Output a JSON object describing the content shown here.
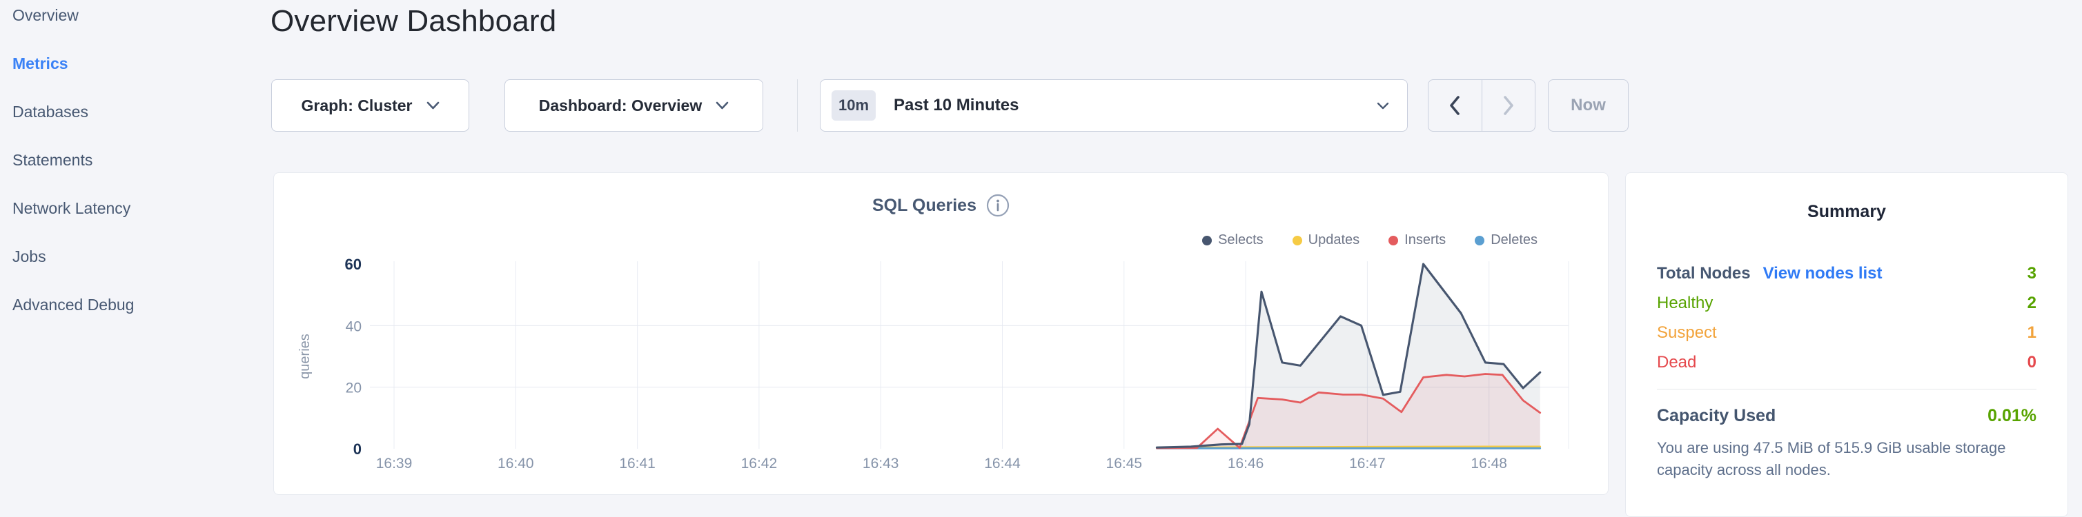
{
  "sidebar": {
    "items": [
      {
        "label": "Overview"
      },
      {
        "label": "Metrics",
        "active": true
      },
      {
        "label": "Databases"
      },
      {
        "label": "Statements"
      },
      {
        "label": "Network Latency"
      },
      {
        "label": "Jobs"
      },
      {
        "label": "Advanced Debug"
      }
    ]
  },
  "header": {
    "title": "Overview Dashboard"
  },
  "toolbar": {
    "graph_dropdown": "Graph: Cluster",
    "dashboard_dropdown": "Dashboard: Overview",
    "time_window": {
      "badge": "10m",
      "label": "Past 10 Minutes"
    },
    "now_label": "Now"
  },
  "chart_data": {
    "type": "line",
    "title": "SQL Queries",
    "ylabel": "queries",
    "xlabel": "",
    "x_ticks": [
      "16:39",
      "16:40",
      "16:41",
      "16:42",
      "16:43",
      "16:44",
      "16:45",
      "16:46",
      "16:47",
      "16:48"
    ],
    "x_note": "series points are minutes after 16:39",
    "y_ticks": [
      0,
      20,
      40,
      60
    ],
    "y_max": 60,
    "ylim": [
      0,
      60
    ],
    "grid": true,
    "legend_position": "top-right",
    "series": [
      {
        "name": "Selects",
        "color": "#47566f",
        "fill": "rgba(71,86,111,0.09)",
        "points": [
          [
            6.27,
            0.4
          ],
          [
            6.55,
            0.7
          ],
          [
            6.8,
            1.4
          ],
          [
            6.97,
            1.6
          ],
          [
            7.03,
            8
          ],
          [
            7.13,
            51
          ],
          [
            7.3,
            28
          ],
          [
            7.45,
            27
          ],
          [
            7.78,
            43
          ],
          [
            7.95,
            40
          ],
          [
            8.13,
            17.5
          ],
          [
            8.27,
            18.5
          ],
          [
            8.46,
            60
          ],
          [
            8.77,
            44
          ],
          [
            8.97,
            28
          ],
          [
            9.12,
            27.5
          ],
          [
            9.28,
            19.7
          ],
          [
            9.42,
            24.8
          ]
        ]
      },
      {
        "name": "Updates",
        "color": "#f6cb45",
        "fill": null,
        "points": [
          [
            6.27,
            0.3
          ],
          [
            7.0,
            0.5
          ],
          [
            8.0,
            0.6
          ],
          [
            9.0,
            0.7
          ],
          [
            9.42,
            0.7
          ]
        ]
      },
      {
        "name": "Inserts",
        "color": "#e45c5e",
        "fill": "rgba(228,92,94,0.10)",
        "points": [
          [
            6.27,
            0.2
          ],
          [
            6.6,
            0.3
          ],
          [
            6.77,
            6.5
          ],
          [
            6.95,
            0.3
          ],
          [
            7.1,
            16.5
          ],
          [
            7.3,
            16
          ],
          [
            7.45,
            15
          ],
          [
            7.6,
            18.3
          ],
          [
            7.8,
            17.6
          ],
          [
            7.95,
            17.6
          ],
          [
            8.13,
            16.3
          ],
          [
            8.28,
            11.9
          ],
          [
            8.46,
            23.2
          ],
          [
            8.65,
            24
          ],
          [
            8.8,
            23.5
          ],
          [
            8.97,
            24.3
          ],
          [
            9.11,
            24
          ],
          [
            9.28,
            15.7
          ],
          [
            9.42,
            11.7
          ]
        ]
      },
      {
        "name": "Deletes",
        "color": "#5b9fd1",
        "fill": null,
        "points": [
          [
            6.27,
            0.15
          ],
          [
            9.42,
            0.15
          ]
        ]
      }
    ]
  },
  "summary": {
    "title": "Summary",
    "total_nodes": {
      "label": "Total Nodes",
      "link": "View nodes list",
      "value": "3"
    },
    "healthy": {
      "label": "Healthy",
      "value": "2"
    },
    "suspect": {
      "label": "Suspect",
      "value": "1"
    },
    "dead": {
      "label": "Dead",
      "value": "0"
    },
    "capacity": {
      "label": "Capacity Used",
      "value": "0.01%",
      "description": "You are using 47.5 MiB of 515.9 GiB usable storage capacity across all nodes."
    }
  },
  "colors": {
    "accent_link": "#2f7af5",
    "healthy_green": "#57a300",
    "suspect_orange": "#f2a33b",
    "dead_red": "#e5494d"
  }
}
